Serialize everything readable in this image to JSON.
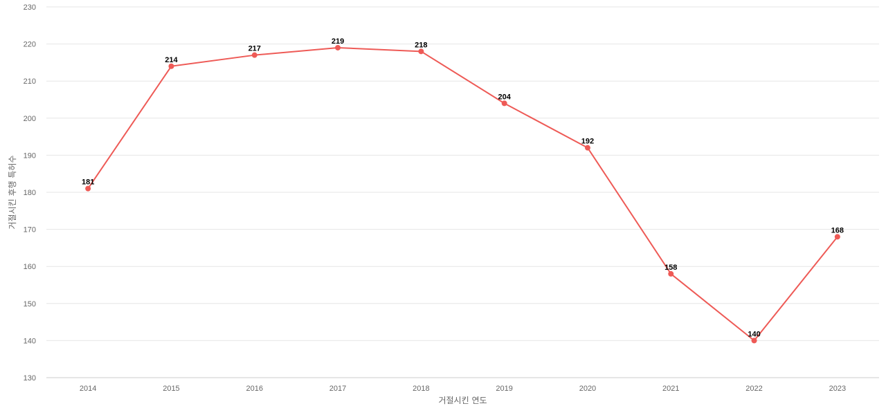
{
  "chart_data": {
    "type": "line",
    "title": "",
    "xlabel": "거절시킨 연도",
    "ylabel": "거절시킨 후행 특허수",
    "categories": [
      "2014",
      "2015",
      "2016",
      "2017",
      "2018",
      "2019",
      "2020",
      "2021",
      "2022",
      "2023"
    ],
    "series": [
      {
        "values": [
          181,
          214,
          217,
          219,
          218,
          204,
          192,
          158,
          140,
          168
        ],
        "color": "#ee5a56"
      }
    ],
    "ylim": [
      130,
      230
    ],
    "yticks": [
      130,
      140,
      150,
      160,
      170,
      180,
      190,
      200,
      210,
      220,
      230
    ],
    "grid": true,
    "data_labels": true,
    "legend": "none"
  }
}
